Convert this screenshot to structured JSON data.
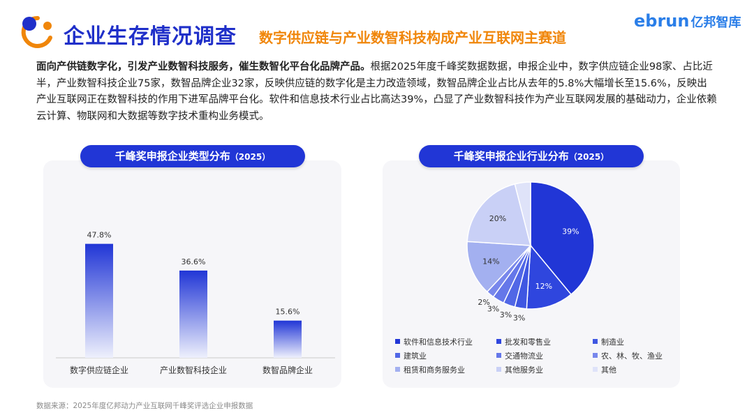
{
  "header": {
    "title": "企业生存情况调查",
    "subtitle": "数字供应链与产业数智科技构成产业互联网主赛道",
    "brand_latin": "ebrun",
    "brand_cn": "亿邦智库"
  },
  "intro": {
    "lead": "面向产供链数字化，引发产业数智科技服务，催生数智化平台化品牌产品。",
    "body": "根据2025年度千峰奖数据数据，申报企业中，数字供应链企业98家、占比近半，产业数智科技企业75家，数智品牌企业32家，反映供应链的数字化是主力改造领域，数智品牌企业占比从去年的5.8%大幅增长至15.6%，反映出产业互联网正在数智科技的作用下进军品牌平台化。软件和信息技术行业占比高达39%，凸显了产业数智科技作为产业互联网发展的基础动力，企业依赖云计算、物联网和大数据等数字技术重构业务模式。"
  },
  "left_chart": {
    "pill_title": "千峰奖申报企业类型分布",
    "pill_year": "（2025）"
  },
  "right_chart": {
    "pill_title": "千峰奖申报企业行业分布",
    "pill_year": "（2025）"
  },
  "source": "数据来源：2025年度亿邦动力产业互联网千峰奖评选企业申报数据",
  "colors": {
    "accent": "#2136d6",
    "orange": "#f0860a",
    "brand": "#2a7ee8"
  },
  "chart_data": [
    {
      "type": "bar",
      "title": "千峰奖申报企业类型分布（2025）",
      "categories": [
        "数字供应链企业",
        "产业数智科技企业",
        "数智品牌企业"
      ],
      "values": [
        47.8,
        36.6,
        15.6
      ],
      "labels": [
        "47.8%",
        "36.6%",
        "15.6%"
      ],
      "ylim": [
        0,
        55
      ],
      "grid": false
    },
    {
      "type": "pie",
      "title": "千峰奖申报企业行业分布（2025）",
      "categories": [
        "软件和信息技术行业",
        "批发和零售业",
        "制造业",
        "建筑业",
        "交通物流业",
        "农、林、牧、渔业",
        "租赁和商务服务业",
        "其他服务业",
        "其他"
      ],
      "values": [
        39,
        12,
        3,
        3,
        3,
        2,
        14,
        20,
        4
      ],
      "labels": [
        "39%",
        "12%",
        "3%",
        "3%",
        "3%",
        "2%",
        "14%",
        "20%",
        ""
      ],
      "colors": [
        "#2136d6",
        "#2f46de",
        "#3f57e2",
        "#5167e6",
        "#6577e9",
        "#7887ec",
        "#a3b0f0",
        "#c9d0f6",
        "#dfe3f9"
      ],
      "legend_position": "bottom"
    }
  ]
}
